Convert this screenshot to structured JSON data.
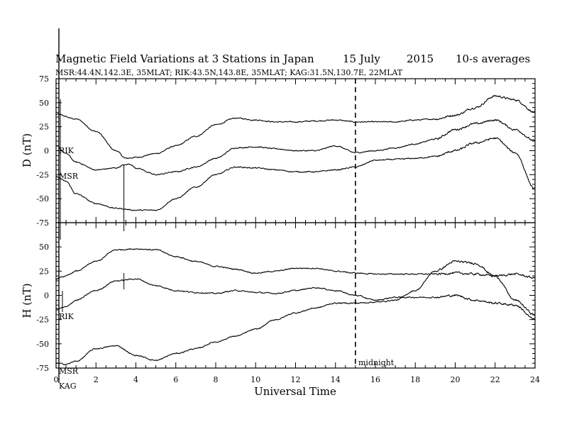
{
  "chart_data": {
    "type": "line",
    "title_parts": [
      "Magnetic Field Variations at 3 Stations in Japan",
      "15 July",
      "2015",
      "10-s averages"
    ],
    "subtitle": "MSR:44.4N,142.3E, 35MLAT;  RIK:43.5N,143.8E, 35MLAT;  KAG:31.5N,130.7E, 22MLAT",
    "xlabel": "Universal Time",
    "xlim": [
      0,
      24
    ],
    "xticks": [
      "0",
      "2",
      "4",
      "6",
      "8",
      "10",
      "12",
      "14",
      "16",
      "18",
      "20",
      "22",
      "24"
    ],
    "grid": false,
    "annotation": {
      "text": "midnight",
      "x": 15
    },
    "panels": [
      {
        "ylabel": "D (nT)",
        "ylim": [
          -75,
          75
        ],
        "yticks": [
          "75",
          "50",
          "25",
          "0",
          "-25",
          "-50",
          "-75"
        ],
        "series": [
          {
            "name": "RIK",
            "x": [
              0,
              1,
              2,
              3,
              3.5,
              4,
              5,
              6,
              7,
              8,
              9,
              10,
              11,
              12,
              13,
              14,
              15,
              16,
              17,
              18,
              19,
              20,
              21,
              22,
              23,
              24
            ],
            "y": [
              38,
              33,
              20,
              0,
              -8,
              -7,
              -3,
              5,
              15,
              27,
              34,
              32,
              30,
              30,
              31,
              32,
              30,
              30,
              30,
              32,
              33,
              37,
              45,
              57,
              53,
              40
            ]
          },
          {
            "name": "",
            "x": [
              0,
              0.5,
              1,
              2,
              3,
              3.4,
              3.7,
              4,
              5,
              6,
              7,
              8,
              9,
              10,
              11,
              12,
              13,
              14,
              15,
              16,
              17,
              18,
              19,
              20,
              21,
              22,
              23,
              24
            ],
            "y": [
              5,
              -3,
              -12,
              -20,
              -18,
              -15,
              -14,
              -18,
              -25,
              -22,
              -17,
              -8,
              3,
              4,
              2,
              0,
              0,
              5,
              -2,
              0,
              3,
              7,
              12,
              22,
              28,
              32,
              22,
              10
            ]
          },
          {
            "name": "MSR",
            "x": [
              0,
              0.5,
              1,
              2,
              3,
              4,
              5,
              6,
              7,
              8,
              9,
              10,
              11,
              12,
              13,
              14,
              15,
              16,
              17,
              18,
              19,
              20,
              21,
              22,
              23,
              24
            ],
            "y": [
              -27,
              -32,
              -45,
              -55,
              -60,
              -62,
              -62,
              -50,
              -38,
              -25,
              -17,
              -18,
              -20,
              -22,
              -22,
              -20,
              -17,
              -10,
              -9,
              -8,
              -6,
              0,
              8,
              13,
              -2,
              -40
            ]
          }
        ]
      },
      {
        "ylabel": "H (nT)",
        "ylim": [
          -75,
          75
        ],
        "yticks": [
          "50",
          "25",
          "0",
          "-25",
          "-50",
          "-75"
        ],
        "series": [
          {
            "name": "RIK",
            "x": [
              0,
              0.5,
              1,
              2,
              3,
              4,
              5,
              6,
              7,
              8,
              9,
              10,
              11,
              12,
              13,
              14,
              15,
              16,
              17,
              18,
              19,
              20,
              21,
              22,
              23,
              24
            ],
            "y": [
              17,
              20,
              25,
              35,
              47,
              48,
              47,
              40,
              35,
              30,
              27,
              23,
              25,
              28,
              28,
              25,
              23,
              22,
              22,
              22,
              22,
              23,
              22,
              20,
              22,
              18
            ]
          },
          {
            "name": "",
            "x": [
              0,
              0.5,
              1,
              2,
              3,
              4,
              5,
              6,
              7,
              8,
              9,
              10,
              11,
              12,
              13,
              14,
              15,
              16,
              17,
              18,
              19,
              20,
              21,
              22,
              23,
              24
            ],
            "y": [
              -14,
              -12,
              -5,
              5,
              15,
              17,
              10,
              5,
              3,
              2,
              5,
              3,
              2,
              5,
              8,
              5,
              0,
              -5,
              -2,
              -2,
              -2,
              0,
              -5,
              -8,
              -10,
              -25
            ]
          },
          {
            "name": "MSR",
            "x": [
              0,
              0.5,
              1,
              2,
              3,
              4,
              5,
              6,
              7,
              8,
              9,
              10,
              11,
              12,
              13,
              14,
              15,
              16,
              17,
              18,
              19,
              20,
              21,
              22,
              23,
              24
            ],
            "y": [
              -70,
              -71,
              -68,
              -55,
              -52,
              -62,
              -67,
              -60,
              -55,
              -48,
              -42,
              -35,
              -25,
              -18,
              -13,
              -8,
              -8,
              -7,
              -5,
              5,
              25,
              35,
              33,
              20,
              -5,
              -20
            ]
          }
        ]
      }
    ]
  },
  "labels": {
    "stations_d": [
      "RIK",
      "MSR"
    ],
    "stations_h": [
      "RIK",
      "MSR",
      "KAG"
    ]
  }
}
